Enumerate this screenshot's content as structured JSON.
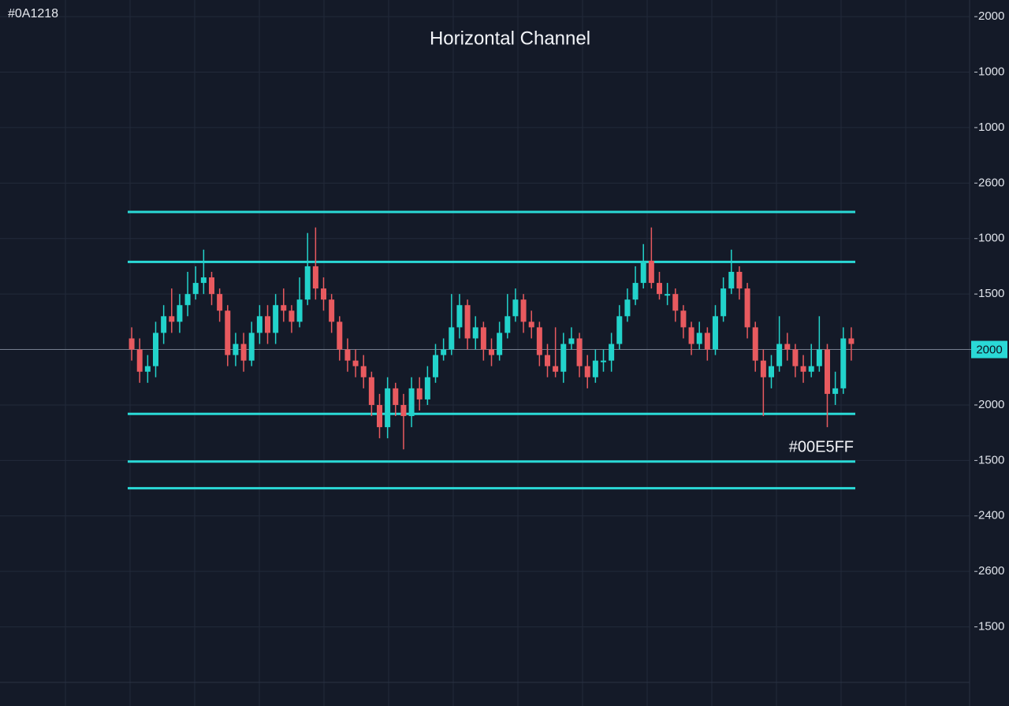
{
  "chart_data": {
    "type": "candlestick",
    "title": "Horizontal Channel",
    "corner_label": "#0A1218",
    "annotation": "#00E5FF",
    "up_color": "#22d3cb",
    "down_color": "#e85a5f",
    "channel_color": "#2ad9d6",
    "grid": true,
    "ylim": [
      0,
      12.3
    ],
    "yticks": [
      {
        "value": 12,
        "label": "2000"
      },
      {
        "value": 11,
        "label": "1000"
      },
      {
        "value": 10,
        "label": "1000"
      },
      {
        "value": 9,
        "label": "2600"
      },
      {
        "value": 8,
        "label": "1000"
      },
      {
        "value": 7,
        "label": "1500"
      },
      {
        "value": 6,
        "label": "2000"
      },
      {
        "value": 5,
        "label": "2000"
      },
      {
        "value": 4,
        "label": "1500"
      },
      {
        "value": 3,
        "label": "2400"
      },
      {
        "value": 2,
        "label": "2600"
      },
      {
        "value": 1,
        "label": "1500"
      }
    ],
    "last_price": {
      "value": 6,
      "label": "2000"
    },
    "channel_levels": [
      8.48,
      7.58,
      4.84,
      3.98,
      3.5
    ],
    "open": [
      6.2,
      6.0,
      5.6,
      5.7,
      6.3,
      6.6,
      6.5,
      6.8,
      7.0,
      7.2,
      7.3,
      7.0,
      6.7,
      5.9,
      6.1,
      5.8,
      6.3,
      6.6,
      6.3,
      6.8,
      6.7,
      6.5,
      6.9,
      7.5,
      7.1,
      6.9,
      6.5,
      6.0,
      5.8,
      5.7,
      5.5,
      5.0,
      4.6,
      5.3,
      5.0,
      4.8,
      5.3,
      5.1,
      5.5,
      5.9,
      6.0,
      6.4,
      6.8,
      6.2,
      6.4,
      6.0,
      5.9,
      6.3,
      6.6,
      6.9,
      6.5,
      6.4,
      5.9,
      5.7,
      5.6,
      6.1,
      6.2,
      5.7,
      5.5,
      5.8,
      5.8,
      6.1,
      6.6,
      6.9,
      7.2,
      7.6,
      7.2,
      7.0,
      7.0,
      6.7,
      6.4,
      6.1,
      6.3,
      6.0,
      6.6,
      7.1,
      7.4,
      7.1,
      6.4,
      5.8,
      5.5,
      5.7,
      6.1,
      6.0,
      5.7,
      5.6,
      5.7,
      6.0,
      5.2,
      5.3,
      6.2
    ],
    "high": [
      6.4,
      6.2,
      5.9,
      6.5,
      6.8,
      7.1,
      7.0,
      7.4,
      7.5,
      7.8,
      7.4,
      7.1,
      6.8,
      6.3,
      6.3,
      6.5,
      6.8,
      6.8,
      7.0,
      7.1,
      6.8,
      7.3,
      8.1,
      8.2,
      7.3,
      7.0,
      6.6,
      6.2,
      6.0,
      5.9,
      5.6,
      5.2,
      5.5,
      5.4,
      5.2,
      5.5,
      5.5,
      5.7,
      6.1,
      6.2,
      7.0,
      7.0,
      6.9,
      6.6,
      6.5,
      6.2,
      6.5,
      7.0,
      7.1,
      7.0,
      6.7,
      6.5,
      6.1,
      6.4,
      6.3,
      6.4,
      6.3,
      5.9,
      6.0,
      6.0,
      6.3,
      6.8,
      7.1,
      7.5,
      7.9,
      8.2,
      7.4,
      7.2,
      7.1,
      6.8,
      6.5,
      6.5,
      6.4,
      6.8,
      7.3,
      7.8,
      7.5,
      7.2,
      6.5,
      6.0,
      5.9,
      6.6,
      6.3,
      6.1,
      5.9,
      6.1,
      6.6,
      6.1,
      5.6,
      6.4,
      6.4
    ],
    "low": [
      5.8,
      5.4,
      5.4,
      5.5,
      6.1,
      6.3,
      6.3,
      6.6,
      6.9,
      7.0,
      6.8,
      6.5,
      5.7,
      5.7,
      5.6,
      5.7,
      6.1,
      6.1,
      6.1,
      6.5,
      6.3,
      6.4,
      6.8,
      6.9,
      6.7,
      6.3,
      5.8,
      5.6,
      5.5,
      5.3,
      4.8,
      4.4,
      4.4,
      4.8,
      4.2,
      4.6,
      4.9,
      5.0,
      5.4,
      5.8,
      5.9,
      6.2,
      6.0,
      6.0,
      5.8,
      5.7,
      5.8,
      6.2,
      6.5,
      6.3,
      6.2,
      5.7,
      5.5,
      5.5,
      5.4,
      6.0,
      5.5,
      5.3,
      5.4,
      5.6,
      5.6,
      6.0,
      6.5,
      6.8,
      7.1,
      7.1,
      6.9,
      6.8,
      6.5,
      6.2,
      5.9,
      6.0,
      5.8,
      5.9,
      6.5,
      7.0,
      6.9,
      6.2,
      5.6,
      4.8,
      5.3,
      5.6,
      5.8,
      5.5,
      5.4,
      5.5,
      5.6,
      4.6,
      5.0,
      5.2,
      5.8
    ],
    "close": [
      6.0,
      5.6,
      5.7,
      6.3,
      6.6,
      6.5,
      6.8,
      7.0,
      7.2,
      7.3,
      7.0,
      6.7,
      5.9,
      6.1,
      5.8,
      6.3,
      6.6,
      6.3,
      6.8,
      6.7,
      6.5,
      6.9,
      7.5,
      7.1,
      6.9,
      6.5,
      6.0,
      5.8,
      5.7,
      5.5,
      5.0,
      4.6,
      5.3,
      5.0,
      4.8,
      5.3,
      5.1,
      5.5,
      5.9,
      6.0,
      6.4,
      6.8,
      6.2,
      6.4,
      6.0,
      5.9,
      6.3,
      6.6,
      6.9,
      6.5,
      6.4,
      5.9,
      5.7,
      5.6,
      6.1,
      6.2,
      5.7,
      5.5,
      5.8,
      5.8,
      6.1,
      6.6,
      6.9,
      7.2,
      7.6,
      7.2,
      7.0,
      7.0,
      6.7,
      6.4,
      6.1,
      6.3,
      6.0,
      6.6,
      7.1,
      7.4,
      7.1,
      6.4,
      5.8,
      5.5,
      5.7,
      6.1,
      6.0,
      5.7,
      5.6,
      5.7,
      6.0,
      5.2,
      5.3,
      6.2,
      6.1
    ]
  }
}
